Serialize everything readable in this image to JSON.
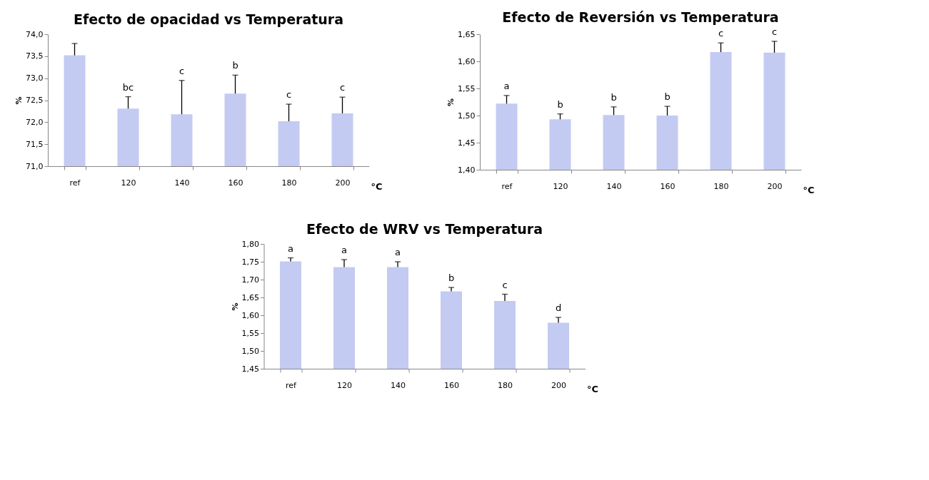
{
  "chart_data": [
    {
      "type": "bar",
      "title": "Efecto de opacidad vs Temperatura",
      "xlabel": "°C",
      "ylabel": "%",
      "categories": [
        "ref",
        "120",
        "140",
        "160",
        "180",
        "200"
      ],
      "values": [
        73.52,
        72.31,
        72.18,
        72.65,
        72.02,
        72.2
      ],
      "color": "#c3cbf2",
      "errors": [
        [
          73.52,
          73.79
        ],
        [
          72.31,
          72.58
        ],
        [
          72.18,
          72.95
        ],
        [
          72.65,
          73.07
        ],
        [
          72.02,
          72.41
        ],
        [
          72.2,
          72.57
        ]
      ],
      "ylim": [
        71.0,
        74.0
      ],
      "yticks": [
        {
          "value": 71.0,
          "label": "71,0"
        },
        {
          "value": 71.5,
          "label": "71,5"
        },
        {
          "value": 72.0,
          "label": "72,0"
        },
        {
          "value": 72.5,
          "label": "72,5"
        },
        {
          "value": 73.0,
          "label": "73,0"
        },
        {
          "value": 73.5,
          "label": "73,5"
        },
        {
          "value": 74.0,
          "label": "74,0"
        }
      ],
      "annotations": [
        {
          "text": "bc",
          "x": "120",
          "y": 72.58
        },
        {
          "text": "c",
          "x": "140",
          "y": 72.95
        },
        {
          "text": "b",
          "x": "160",
          "y": 73.07
        },
        {
          "text": "c",
          "x": "180",
          "y": 72.41
        },
        {
          "text": "c",
          "x": "200",
          "y": 72.57
        }
      ],
      "grid": false
    },
    {
      "type": "bar",
      "title": "Efecto de Reversión vs Temperatura",
      "xlabel": "°C",
      "ylabel": "%",
      "categories": [
        "ref",
        "120",
        "140",
        "160",
        "180",
        "200"
      ],
      "values": [
        1.522,
        1.493,
        1.501,
        1.5,
        1.617,
        1.616
      ],
      "color": "#c3cbf2",
      "errors": [
        [
          1.522,
          1.537
        ],
        [
          1.493,
          1.503
        ],
        [
          1.501,
          1.516
        ],
        [
          1.5,
          1.517
        ],
        [
          1.617,
          1.634
        ],
        [
          1.616,
          1.637
        ]
      ],
      "ylim": [
        1.4,
        1.65
      ],
      "yticks": [
        {
          "value": 1.4,
          "label": "1,40"
        },
        {
          "value": 1.45,
          "label": "1,45"
        },
        {
          "value": 1.5,
          "label": "1,50"
        },
        {
          "value": 1.55,
          "label": "1,55"
        },
        {
          "value": 1.6,
          "label": "1,60"
        },
        {
          "value": 1.65,
          "label": "1,65"
        }
      ],
      "annotations": [
        {
          "text": "a",
          "x": "ref",
          "y": 1.537
        },
        {
          "text": "b",
          "x": "120",
          "y": 1.503
        },
        {
          "text": "b",
          "x": "140",
          "y": 1.516
        },
        {
          "text": "b",
          "x": "160",
          "y": 1.517
        },
        {
          "text": "c",
          "x": "180",
          "y": 1.634
        },
        {
          "text": "c",
          "x": "200",
          "y": 1.637
        }
      ],
      "grid": false
    },
    {
      "type": "bar",
      "title": "Efecto de WRV vs Temperatura",
      "xlabel": "°C",
      "ylabel": "%",
      "categories": [
        "ref",
        "120",
        "140",
        "160",
        "180",
        "200"
      ],
      "values": [
        1.751,
        1.735,
        1.735,
        1.667,
        1.64,
        1.579
      ],
      "color": "#c3cbf2",
      "errors": [
        [
          1.751,
          1.761
        ],
        [
          1.735,
          1.756
        ],
        [
          1.735,
          1.75
        ],
        [
          1.667,
          1.678
        ],
        [
          1.64,
          1.659
        ],
        [
          1.579,
          1.594
        ]
      ],
      "ylim": [
        1.45,
        1.8
      ],
      "yticks": [
        {
          "value": 1.45,
          "label": "1,45"
        },
        {
          "value": 1.5,
          "label": "1,50"
        },
        {
          "value": 1.55,
          "label": "1,55"
        },
        {
          "value": 1.6,
          "label": "1,60"
        },
        {
          "value": 1.65,
          "label": "1,65"
        },
        {
          "value": 1.7,
          "label": "1,70"
        },
        {
          "value": 1.75,
          "label": "1,75"
        },
        {
          "value": 1.8,
          "label": "1,80"
        }
      ],
      "annotations": [
        {
          "text": "a",
          "x": "ref",
          "y": 1.761
        },
        {
          "text": "a",
          "x": "120",
          "y": 1.756
        },
        {
          "text": "a",
          "x": "140",
          "y": 1.75
        },
        {
          "text": "b",
          "x": "160",
          "y": 1.678
        },
        {
          "text": "c",
          "x": "180",
          "y": 1.659
        },
        {
          "text": "d",
          "x": "200",
          "y": 1.594
        }
      ],
      "grid": false
    }
  ]
}
